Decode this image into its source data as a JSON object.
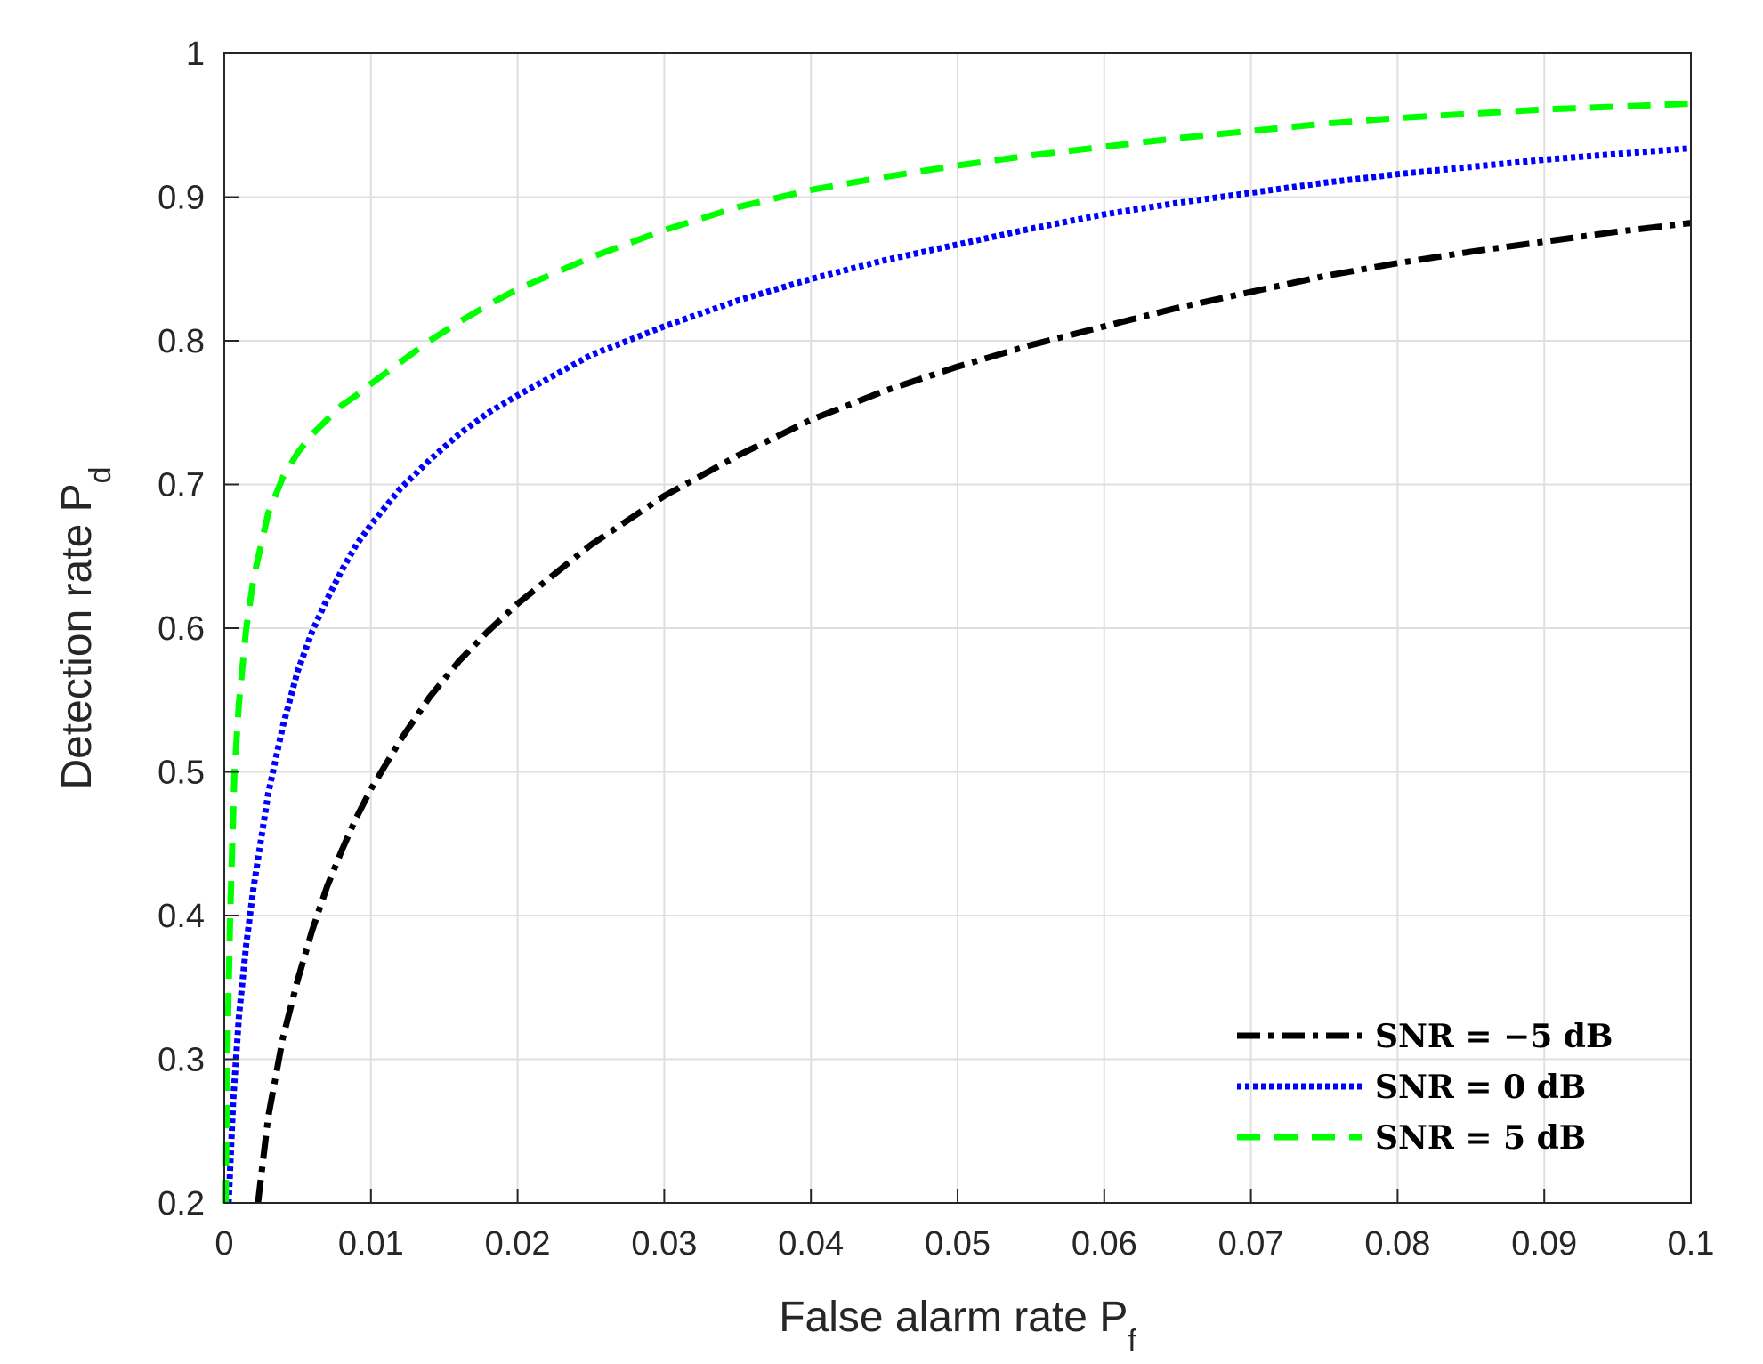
{
  "chart_data": {
    "type": "line",
    "xlabel": {
      "main": "False alarm rate P",
      "sub": "f"
    },
    "ylabel": {
      "main": "Detection rate P",
      "sub": "d"
    },
    "xlim": [
      0,
      0.1
    ],
    "ylim": [
      0.2,
      1
    ],
    "xticks": [
      0,
      0.01,
      0.02,
      0.03,
      0.04,
      0.05,
      0.06,
      0.07,
      0.08,
      0.09,
      0.1
    ],
    "xtick_labels": [
      "0",
      "0.01",
      "0.02",
      "0.03",
      "0.04",
      "0.05",
      "0.06",
      "0.07",
      "0.08",
      "0.09",
      "0.1"
    ],
    "yticks": [
      0.2,
      0.3,
      0.4,
      0.5,
      0.6,
      0.7,
      0.8,
      0.9,
      1
    ],
    "ytick_labels": [
      "0.2",
      "0.3",
      "0.4",
      "0.5",
      "0.6",
      "0.7",
      "0.8",
      "0.9",
      "1"
    ],
    "grid": true,
    "legend_position": "bottom-right",
    "series": [
      {
        "name": "SNR = −5 dB",
        "color": "#000000",
        "dash": "dashdot",
        "x": [
          0.0023,
          0.003,
          0.004,
          0.005,
          0.006,
          0.007,
          0.008,
          0.009,
          0.01,
          0.012,
          0.014,
          0.016,
          0.018,
          0.02,
          0.025,
          0.03,
          0.035,
          0.04,
          0.045,
          0.05,
          0.055,
          0.06,
          0.065,
          0.07,
          0.075,
          0.08,
          0.085,
          0.09,
          0.095,
          0.1
        ],
        "y": [
          0.2,
          0.26,
          0.315,
          0.355,
          0.39,
          0.42,
          0.445,
          0.468,
          0.488,
          0.522,
          0.552,
          0.577,
          0.598,
          0.617,
          0.658,
          0.692,
          0.72,
          0.745,
          0.765,
          0.782,
          0.797,
          0.81,
          0.823,
          0.834,
          0.845,
          0.854,
          0.862,
          0.869,
          0.876,
          0.882
        ]
      },
      {
        "name": "SNR = 0 dB",
        "color": "#0000ff",
        "dash": "dotted",
        "x": [
          0.0003,
          0.0006,
          0.001,
          0.0015,
          0.002,
          0.003,
          0.004,
          0.005,
          0.006,
          0.007,
          0.008,
          0.009,
          0.01,
          0.012,
          0.014,
          0.016,
          0.018,
          0.02,
          0.025,
          0.03,
          0.035,
          0.04,
          0.045,
          0.05,
          0.055,
          0.06,
          0.065,
          0.07,
          0.075,
          0.08,
          0.085,
          0.09,
          0.095,
          0.1
        ],
        "y": [
          0.2,
          0.27,
          0.33,
          0.38,
          0.42,
          0.485,
          0.532,
          0.57,
          0.598,
          0.62,
          0.64,
          0.658,
          0.672,
          0.697,
          0.717,
          0.735,
          0.75,
          0.762,
          0.79,
          0.81,
          0.828,
          0.843,
          0.856,
          0.867,
          0.878,
          0.888,
          0.896,
          0.903,
          0.91,
          0.916,
          0.921,
          0.926,
          0.93,
          0.934
        ]
      },
      {
        "name": "SNR = 5 dB",
        "color": "#00ff00",
        "dash": "dashed",
        "x": [
          0.0001,
          0.0002,
          0.0004,
          0.0007,
          0.001,
          0.0015,
          0.002,
          0.003,
          0.004,
          0.005,
          0.006,
          0.007,
          0.008,
          0.009,
          0.01,
          0.012,
          0.014,
          0.016,
          0.018,
          0.02,
          0.025,
          0.03,
          0.035,
          0.04,
          0.045,
          0.05,
          0.055,
          0.06,
          0.065,
          0.07,
          0.075,
          0.08,
          0.085,
          0.09,
          0.095,
          0.1
        ],
        "y": [
          0.2,
          0.3,
          0.4,
          0.5,
          0.548,
          0.6,
          0.635,
          0.68,
          0.705,
          0.722,
          0.735,
          0.745,
          0.755,
          0.762,
          0.77,
          0.785,
          0.8,
          0.813,
          0.825,
          0.836,
          0.858,
          0.877,
          0.893,
          0.905,
          0.914,
          0.922,
          0.929,
          0.935,
          0.941,
          0.946,
          0.951,
          0.955,
          0.958,
          0.961,
          0.963,
          0.965
        ]
      }
    ]
  }
}
